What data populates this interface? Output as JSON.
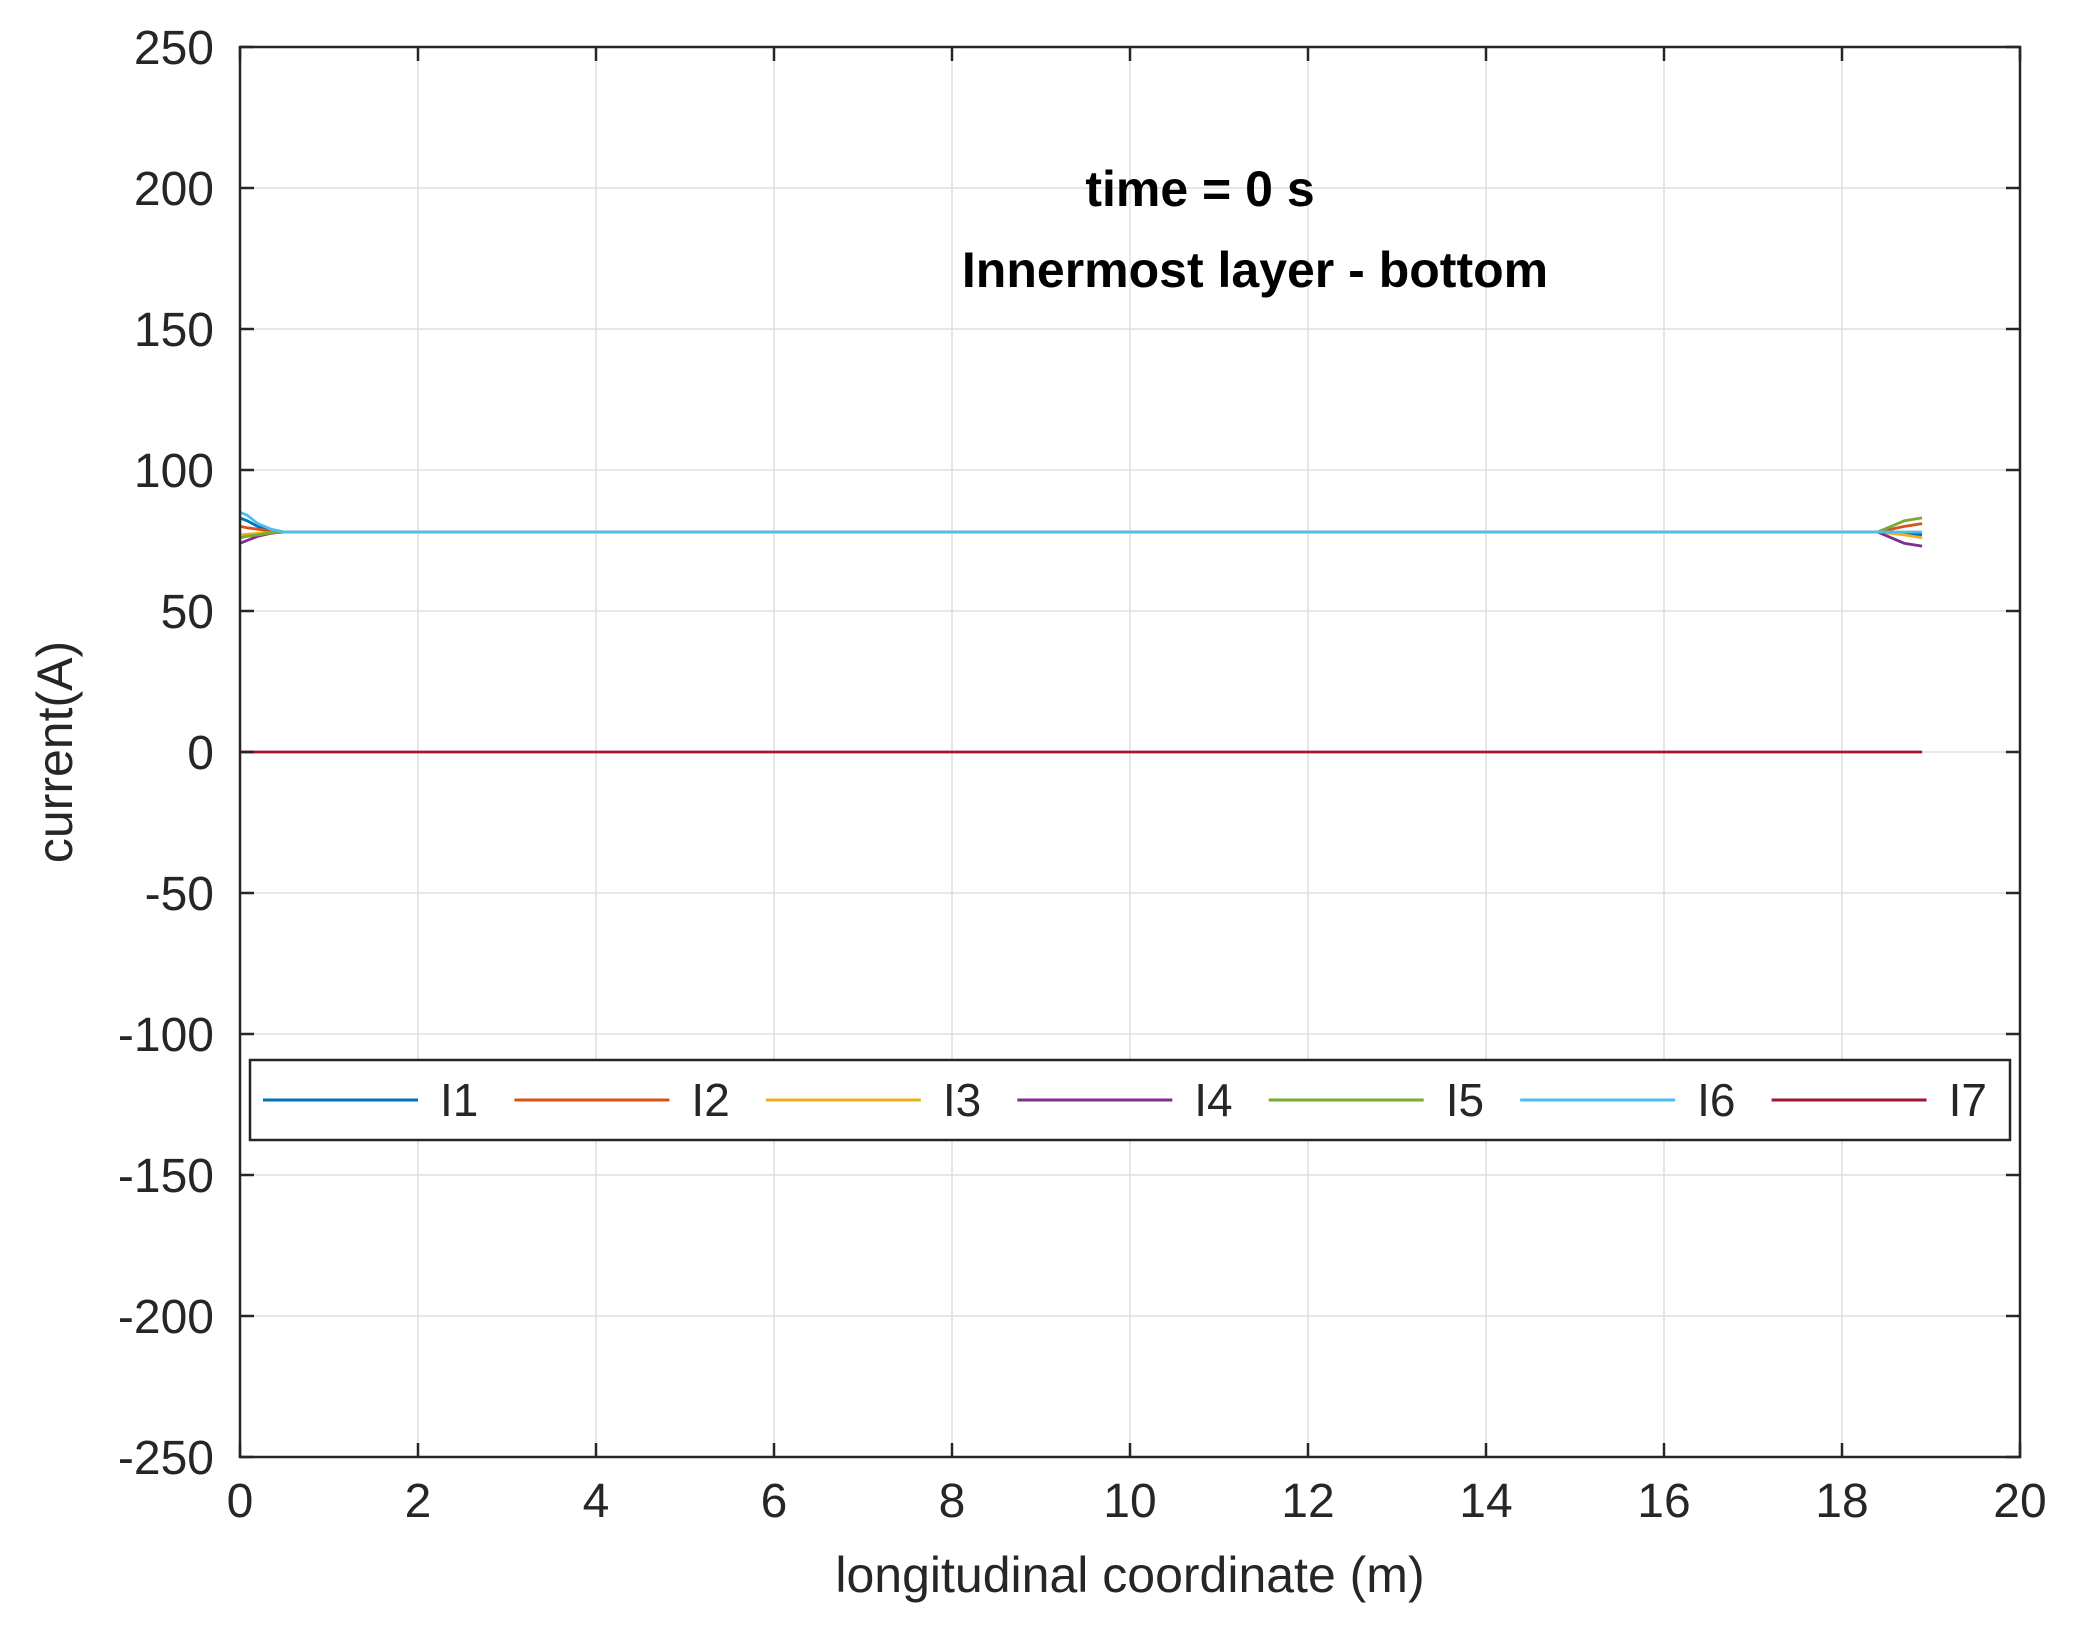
{
  "chart_data": {
    "type": "line",
    "annotation": [
      "time = 0 s",
      "Innermost layer - bottom"
    ],
    "xlabel": "longitudinal coordinate (m)",
    "ylabel": "current(A)",
    "xlim": [
      0,
      20
    ],
    "ylim": [
      -250,
      250
    ],
    "xticks": [
      0,
      2,
      4,
      6,
      8,
      10,
      12,
      14,
      16,
      18,
      20
    ],
    "yticks": [
      -250,
      -200,
      -150,
      -100,
      -50,
      0,
      50,
      100,
      150,
      200,
      250
    ],
    "grid": true,
    "legend": {
      "placement": "inside-bottom",
      "orientation": "horizontal"
    },
    "series": [
      {
        "name": "I1",
        "color": "#0072BD",
        "x": [
          0,
          0.08,
          0.2,
          0.35,
          0.5,
          18.4,
          18.55,
          18.7,
          18.9
        ],
        "y": [
          83,
          82,
          80,
          78.5,
          78,
          78,
          78,
          77.5,
          77
        ]
      },
      {
        "name": "I2",
        "color": "#D95319",
        "x": [
          0,
          0.08,
          0.2,
          0.35,
          0.5,
          18.4,
          18.55,
          18.7,
          18.9
        ],
        "y": [
          80,
          79.5,
          79,
          78.3,
          78,
          78,
          79,
          80,
          81
        ]
      },
      {
        "name": "I3",
        "color": "#EDB120",
        "x": [
          0,
          0.08,
          0.2,
          0.35,
          0.5,
          18.4,
          18.55,
          18.7,
          18.9
        ],
        "y": [
          77,
          77.2,
          77.5,
          77.8,
          78,
          78,
          77.5,
          77,
          76
        ]
      },
      {
        "name": "I4",
        "color": "#7E2F8E",
        "x": [
          0,
          0.08,
          0.2,
          0.35,
          0.5,
          18.4,
          18.55,
          18.7,
          18.9
        ],
        "y": [
          74,
          75,
          76.5,
          77.6,
          78,
          78,
          76,
          74,
          73
        ]
      },
      {
        "name": "I5",
        "color": "#77AC30",
        "x": [
          0,
          0.08,
          0.2,
          0.35,
          0.5,
          18.4,
          18.55,
          18.7,
          18.9
        ],
        "y": [
          76,
          76.5,
          77,
          77.7,
          78,
          78,
          80,
          82,
          83
        ]
      },
      {
        "name": "I6",
        "color": "#4DBEEE",
        "x": [
          0,
          0.08,
          0.2,
          0.35,
          0.5,
          18.4,
          18.55,
          18.7,
          18.9
        ],
        "y": [
          85,
          84,
          81,
          79,
          78,
          78,
          78,
          78,
          78
        ]
      },
      {
        "name": "I7",
        "color": "#A2142F",
        "x": [
          0,
          18.9
        ],
        "y": [
          0,
          0
        ]
      }
    ]
  }
}
